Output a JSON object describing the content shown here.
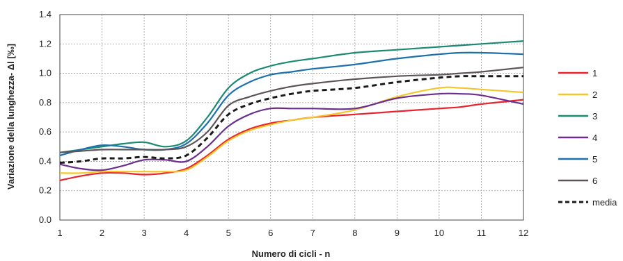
{
  "chart_data": {
    "type": "line",
    "xlabel": "Numero di cicli - n",
    "ylabel": "Variazione della lunghezza- Δl  [‰]",
    "xlim": [
      1,
      12
    ],
    "ylim": [
      0.0,
      1.4
    ],
    "x_ticks": [
      "1",
      "2",
      "3",
      "4",
      "5",
      "6",
      "7",
      "8",
      "9",
      "10",
      "11",
      "12"
    ],
    "y_ticks": [
      "0.0",
      "0.2",
      "0.4",
      "0.6",
      "0.8",
      "1.0",
      "1.2",
      "1.4"
    ],
    "grid": true,
    "legend_position": "right",
    "x": [
      1,
      1.5,
      2,
      2.5,
      3,
      3.5,
      4,
      4.5,
      5,
      5.5,
      6,
      6.5,
      7,
      8,
      9,
      10,
      10.5,
      11,
      12
    ],
    "series": [
      {
        "name": "1",
        "color": "#e8232e",
        "dashed": false,
        "values": [
          0.27,
          0.3,
          0.32,
          0.32,
          0.31,
          0.32,
          0.35,
          0.44,
          0.55,
          0.62,
          0.66,
          0.68,
          0.7,
          0.72,
          0.74,
          0.76,
          0.77,
          0.79,
          0.82
        ]
      },
      {
        "name": "2",
        "color": "#f5c62a",
        "dashed": false,
        "values": [
          0.32,
          0.32,
          0.33,
          0.33,
          0.33,
          0.33,
          0.34,
          0.43,
          0.54,
          0.61,
          0.65,
          0.68,
          0.7,
          0.75,
          0.84,
          0.9,
          0.9,
          0.89,
          0.87
        ]
      },
      {
        "name": "3",
        "color": "#1b8a72",
        "dashed": false,
        "values": [
          0.46,
          0.48,
          0.5,
          0.52,
          0.53,
          0.5,
          0.54,
          0.7,
          0.9,
          1.0,
          1.05,
          1.08,
          1.1,
          1.14,
          1.16,
          1.18,
          1.19,
          1.2,
          1.22
        ]
      },
      {
        "name": "4",
        "color": "#6a2f8e",
        "dashed": false,
        "values": [
          0.38,
          0.35,
          0.34,
          0.37,
          0.41,
          0.41,
          0.4,
          0.5,
          0.64,
          0.72,
          0.76,
          0.76,
          0.76,
          0.76,
          0.83,
          0.86,
          0.86,
          0.85,
          0.79
        ]
      },
      {
        "name": "5",
        "color": "#1d6fae",
        "dashed": false,
        "values": [
          0.44,
          0.48,
          0.51,
          0.5,
          0.48,
          0.48,
          0.52,
          0.66,
          0.85,
          0.94,
          0.99,
          1.01,
          1.03,
          1.06,
          1.1,
          1.13,
          1.14,
          1.14,
          1.13
        ]
      },
      {
        "name": "6",
        "color": "#5c5456",
        "dashed": false,
        "values": [
          0.46,
          0.47,
          0.48,
          0.48,
          0.48,
          0.48,
          0.5,
          0.6,
          0.78,
          0.84,
          0.88,
          0.91,
          0.93,
          0.96,
          0.98,
          0.99,
          1.0,
          1.01,
          1.04
        ]
      },
      {
        "name": "media",
        "color": "#1a1a1a",
        "dashed": true,
        "values": [
          0.39,
          0.4,
          0.42,
          0.42,
          0.43,
          0.42,
          0.44,
          0.56,
          0.72,
          0.79,
          0.83,
          0.86,
          0.88,
          0.9,
          0.94,
          0.97,
          0.98,
          0.98,
          0.98
        ]
      }
    ]
  }
}
